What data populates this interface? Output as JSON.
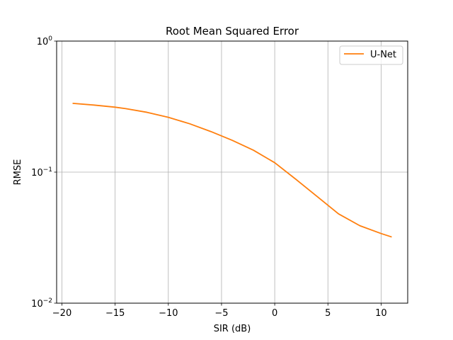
{
  "chart_data": {
    "type": "line",
    "title": "Root Mean Squared Error",
    "xlabel": "SIR (dB)",
    "ylabel": "RMSE",
    "xlim": [
      -20.5,
      12.5
    ],
    "ylim": [
      0.01,
      1
    ],
    "yscale": "log",
    "grid": true,
    "legend_position": "top-right",
    "x_ticks": [
      {
        "value": -20,
        "label": "−20"
      },
      {
        "value": -15,
        "label": "−15"
      },
      {
        "value": -10,
        "label": "−10"
      },
      {
        "value": -5,
        "label": "−5"
      },
      {
        "value": 0,
        "label": "0"
      },
      {
        "value": 5,
        "label": "5"
      },
      {
        "value": 10,
        "label": "10"
      }
    ],
    "y_ticks": [
      {
        "value": 0.01,
        "base": "10",
        "exp": "−2"
      },
      {
        "value": 0.1,
        "base": "10",
        "exp": "−1"
      },
      {
        "value": 1,
        "base": "10",
        "exp": "0"
      }
    ],
    "series": [
      {
        "name": "U-Net",
        "color": "#ff7f0e",
        "x": [
          -19,
          -17,
          -15,
          -14,
          -12,
          -10,
          -8,
          -6,
          -4,
          -2,
          0,
          2,
          4,
          6,
          8,
          10,
          11
        ],
        "y": [
          0.335,
          0.325,
          0.313,
          0.305,
          0.286,
          0.262,
          0.234,
          0.204,
          0.175,
          0.147,
          0.118,
          0.088,
          0.065,
          0.048,
          0.039,
          0.034,
          0.032
        ]
      }
    ]
  }
}
